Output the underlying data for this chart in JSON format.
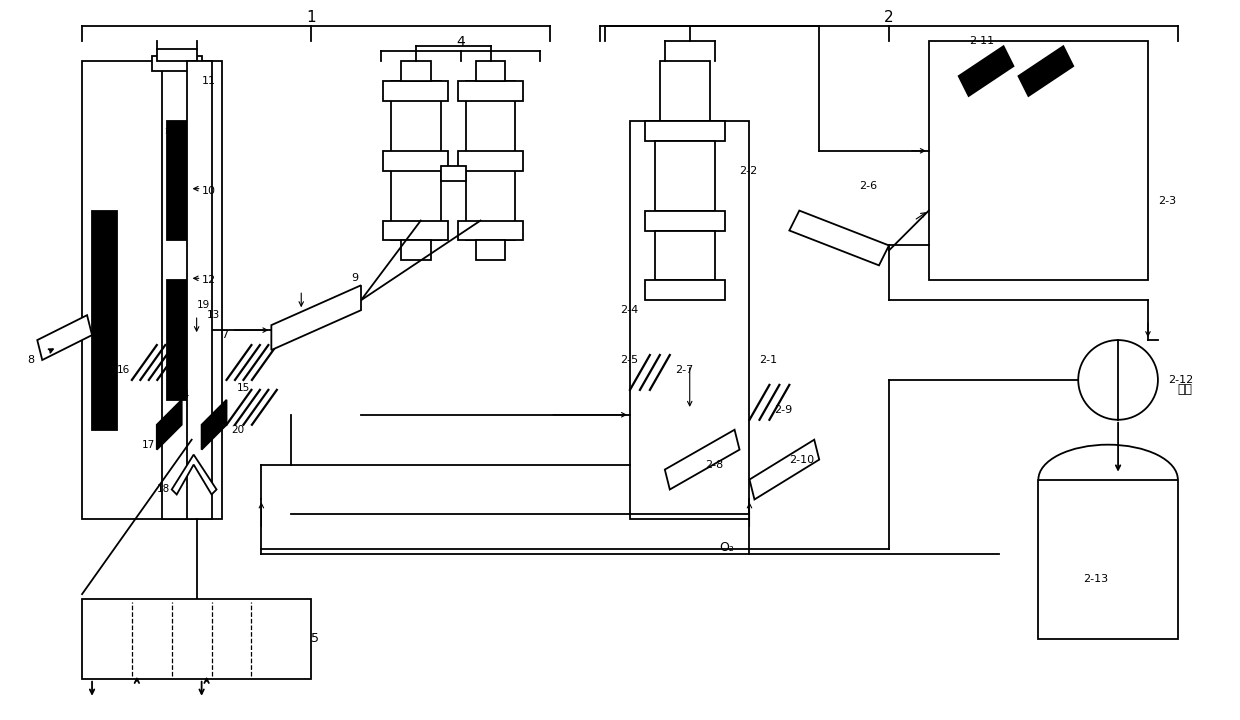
{
  "bg_color": "#ffffff",
  "line_color": "#000000",
  "figsize": [
    12.4,
    7.2
  ],
  "dpi": 100
}
